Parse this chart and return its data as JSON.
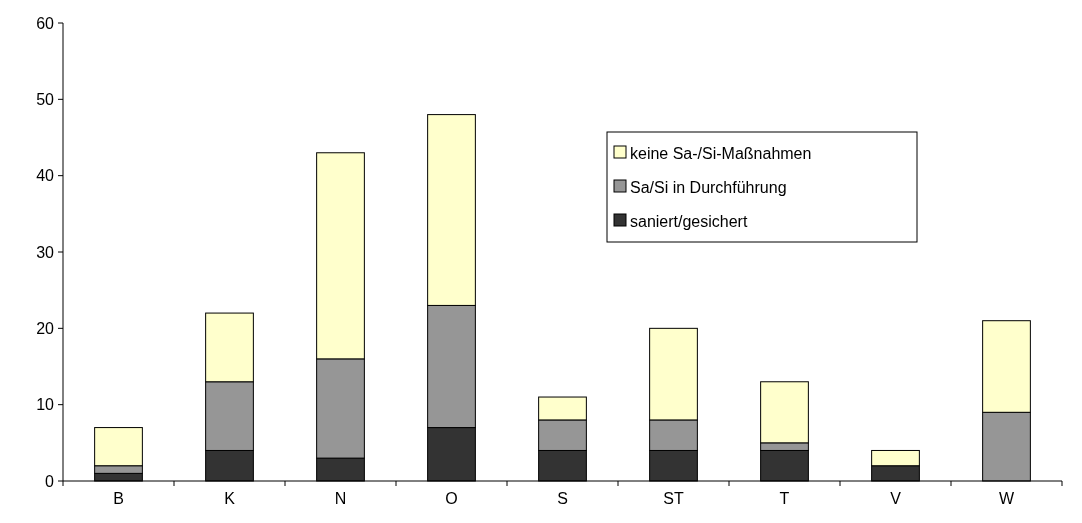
{
  "chart_data": {
    "type": "bar",
    "stacked": true,
    "categories": [
      "B",
      "K",
      "N",
      "O",
      "S",
      "ST",
      "T",
      "V",
      "W"
    ],
    "series": [
      {
        "name": "saniert/gesichert",
        "color": "#333333",
        "values": [
          1,
          4,
          3,
          7,
          4,
          4,
          4,
          2,
          0
        ]
      },
      {
        "name": "Sa/Si in Durchführung",
        "color": "#969696",
        "values": [
          1,
          9,
          13,
          16,
          4,
          4,
          1,
          0,
          9
        ]
      },
      {
        "name": "keine Sa-/Si-Maßnahmen",
        "color": "#ffffcc",
        "values": [
          5,
          9,
          27,
          25,
          3,
          12,
          8,
          2,
          12
        ]
      }
    ],
    "ylim": [
      0,
      60
    ],
    "yticks": [
      0,
      10,
      20,
      30,
      40,
      50,
      60
    ],
    "legend": "right"
  }
}
